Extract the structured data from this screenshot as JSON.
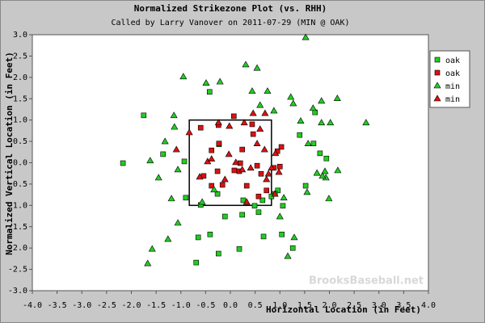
{
  "chart_data": {
    "type": "scatter",
    "title": "Normalized Strikezone Plot (vs. RHH)",
    "subtitle": "Called by Larry Vanover on 2011-07-29 (MIN @ OAK)",
    "x_label": "Horizontal Location (in Feet)",
    "y_label": "Normalized Vertical Location (in Feet)",
    "watermark": "BrooksBaseball.net",
    "xlim": [
      -4,
      4
    ],
    "ylim": [
      -3,
      3
    ],
    "xticks": [
      {
        "value": -4,
        "label": "-4.0"
      },
      -3.5,
      {
        "value": -3,
        "label": "-3.0"
      },
      -2.5,
      {
        "value": -2,
        "label": "-2.0"
      },
      -1.5,
      {
        "value": -1,
        "label": "-1.0"
      },
      -0.5,
      {
        "value": 0,
        "label": "0.0"
      },
      0.5,
      {
        "value": 1,
        "label": "1.0"
      },
      1.5,
      {
        "value": 2,
        "label": "2.0"
      },
      2.5,
      {
        "value": 3,
        "label": "3.0"
      },
      3.5,
      {
        "value": 4,
        "label": "4.0"
      }
    ],
    "yticks": [
      {
        "value": -3,
        "label": "-3.0"
      },
      -2.5,
      {
        "value": -2,
        "label": "-2.0"
      },
      -1.5,
      {
        "value": -1,
        "label": "-1.0"
      },
      -0.5,
      {
        "value": 0,
        "label": "0.0"
      },
      0.5,
      {
        "value": 1,
        "label": "1.0"
      },
      1.5,
      {
        "value": 2,
        "label": "2.0"
      },
      2.5,
      {
        "value": 3,
        "label": "3.0"
      }
    ],
    "grid": false,
    "legend": "top-right",
    "strike_zone": {
      "x": [
        -0.83,
        0.83
      ],
      "y": [
        -1,
        1
      ]
    },
    "series": [
      {
        "name": "oak",
        "color": "#22cc22",
        "marker": "square",
        "x": [
          -1.75,
          -2.17,
          -1.36,
          -0.9,
          -0.93,
          -0.42,
          -0.23,
          -0.26,
          -0.6,
          -0.65,
          -0.69,
          -0.24,
          -0.41,
          0.18,
          -0.11,
          0.24,
          0.57,
          0.26,
          0.65,
          0.49,
          0.96,
          0.9,
          0.83,
          0.67,
          1.04,
          1.26,
          1.06,
          1.52,
          1.4,
          1.71,
          1.81,
          1.94,
          1.68
        ],
        "y": [
          1.11,
          -0.01,
          0.2,
          -0.82,
          0.03,
          1.66,
          0.43,
          -0.73,
          -0.99,
          -1.75,
          -2.34,
          -2.13,
          -1.68,
          -2.02,
          -1.26,
          -1.22,
          -1.16,
          -0.88,
          -0.88,
          -1.01,
          -0.65,
          -0.73,
          -0.79,
          -1.73,
          -1.68,
          -2.0,
          -1.01,
          -0.54,
          0.65,
          1.18,
          0.22,
          0.1,
          0.45
        ]
      },
      {
        "name": "oak",
        "color": "#dd1111",
        "marker": "square",
        "x": [
          -0.6,
          -0.24,
          0.07,
          0.44,
          0.46,
          0.24,
          -0.26,
          -0.54,
          -0.38,
          0.2,
          0.18,
          0.54,
          0.62,
          0.57,
          0.73,
          0.88,
          1.0,
          0.95,
          1.03,
          0.08,
          -0.16,
          0.33,
          -0.23,
          -0.38
        ],
        "y": [
          0.82,
          0.88,
          1.09,
          0.9,
          0.67,
          0.31,
          -0.2,
          -0.31,
          -0.54,
          -0.01,
          -0.2,
          -0.07,
          -0.26,
          -0.79,
          -0.65,
          -0.12,
          -0.09,
          0.27,
          0.37,
          -0.18,
          -0.52,
          -0.54,
          0.45,
          0.29
        ]
      },
      {
        "name": "min",
        "color": "#22cc22",
        "marker": "triangle",
        "x": [
          -0.95,
          -0.49,
          -0.21,
          0.31,
          0.54,
          1.52,
          0.44,
          0.75,
          0.6,
          0.88,
          1.22,
          1.27,
          1.67,
          1.84,
          2.16,
          2.74,
          2.02,
          1.84,
          1.42,
          1.57,
          2.17,
          1.91,
          1.93,
          1.86,
          1.75,
          1.55,
          1.99,
          1.08,
          1.0,
          1.29,
          1.16,
          -1.14,
          -1.32,
          -1.62,
          -1.45,
          -1.19,
          -1.06,
          -1.26,
          -1.58,
          -1.67,
          -1.13,
          -0.57,
          -0.33,
          -1.06
        ],
        "y": [
          2.02,
          1.87,
          1.9,
          2.3,
          2.22,
          2.94,
          1.68,
          1.68,
          1.35,
          1.22,
          1.54,
          1.39,
          1.28,
          1.45,
          1.51,
          0.94,
          0.94,
          0.94,
          0.98,
          0.45,
          -0.18,
          -0.2,
          -0.35,
          -0.31,
          -0.24,
          -0.69,
          -0.84,
          -0.82,
          -1.26,
          -1.75,
          -2.19,
          1.11,
          0.5,
          0.05,
          -0.35,
          -0.84,
          -1.41,
          -1.79,
          -2.02,
          -2.36,
          0.84,
          -0.92,
          -0.63,
          -0.16
        ]
      },
      {
        "name": "min",
        "color": "#dd1111",
        "marker": "triangle",
        "x": [
          -1.09,
          -0.83,
          -0.24,
          -0.02,
          0.28,
          0.46,
          0.6,
          0.7,
          0.69,
          0.54,
          0.91,
          -0.62,
          -0.46,
          -0.03,
          0.24,
          0.41,
          0.98,
          0.9,
          0.83,
          0.73,
          -0.11,
          0.33,
          -0.38,
          0.77,
          0.11
        ],
        "y": [
          0.31,
          0.71,
          0.94,
          0.86,
          0.94,
          1.16,
          0.79,
          1.16,
          0.31,
          0.45,
          0.22,
          -0.33,
          0.03,
          0.2,
          -0.16,
          -0.12,
          -0.22,
          -0.73,
          -0.12,
          -0.39,
          -0.39,
          -0.92,
          0.09,
          -0.26,
          0.01
        ]
      }
    ]
  }
}
